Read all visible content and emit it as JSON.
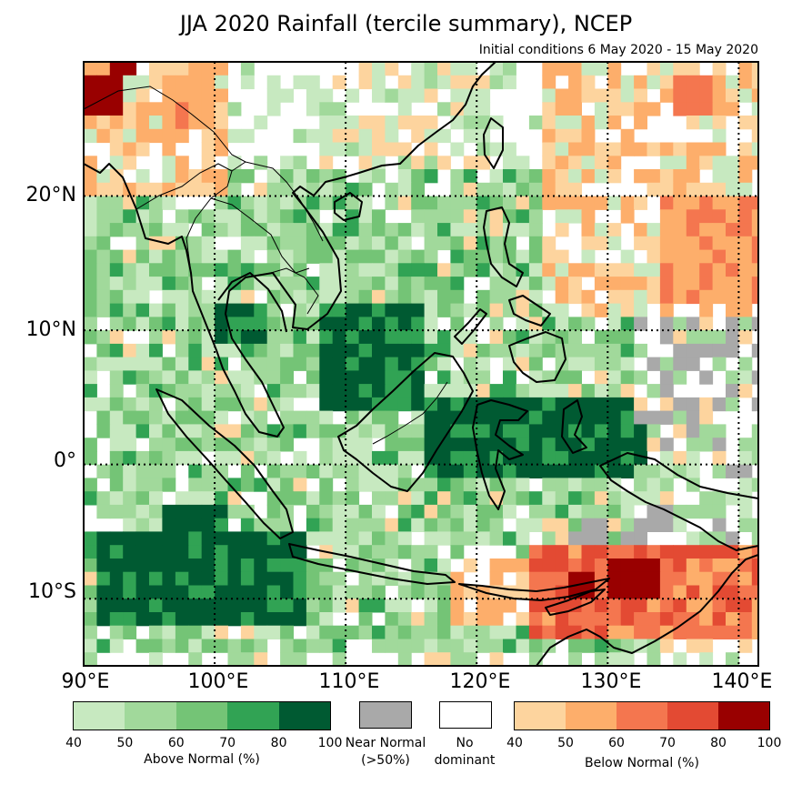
{
  "title": "JJA 2020 Rainfall (tercile summary), NCEP",
  "subtitle": "Initial conditions 6 May 2020 - 15 May 2020",
  "lat_labels": [
    "20°N",
    "10°N",
    "0°",
    "10°S"
  ],
  "lon_labels": [
    "90°E",
    "100°E",
    "110°E",
    "120°E",
    "130°E",
    "140°E"
  ],
  "map_extent": {
    "lon": [
      90,
      141.5
    ],
    "lat": [
      -15,
      30
    ]
  },
  "legend": {
    "above_normal": {
      "label": "Above Normal (%)",
      "ticks": [
        "40",
        "50",
        "60",
        "70",
        "80",
        "100"
      ],
      "colors": [
        "#c7e9c0",
        "#a1d99b",
        "#74c476",
        "#31a354",
        "#005a32"
      ]
    },
    "near_normal": {
      "label_line1": "Near Normal",
      "label_line2": "(>50%)",
      "color": "#a9a9a9"
    },
    "no_dominant": {
      "label_line1": "No",
      "label_line2": "dominant",
      "color": "#ffffff"
    },
    "below_normal": {
      "label": "Below Normal (%)",
      "ticks": [
        "40",
        "50",
        "60",
        "70",
        "80",
        "100"
      ],
      "colors": [
        "#fdd49e",
        "#fdae6b",
        "#f4764f",
        "#e34a33",
        "#990000"
      ]
    }
  }
}
